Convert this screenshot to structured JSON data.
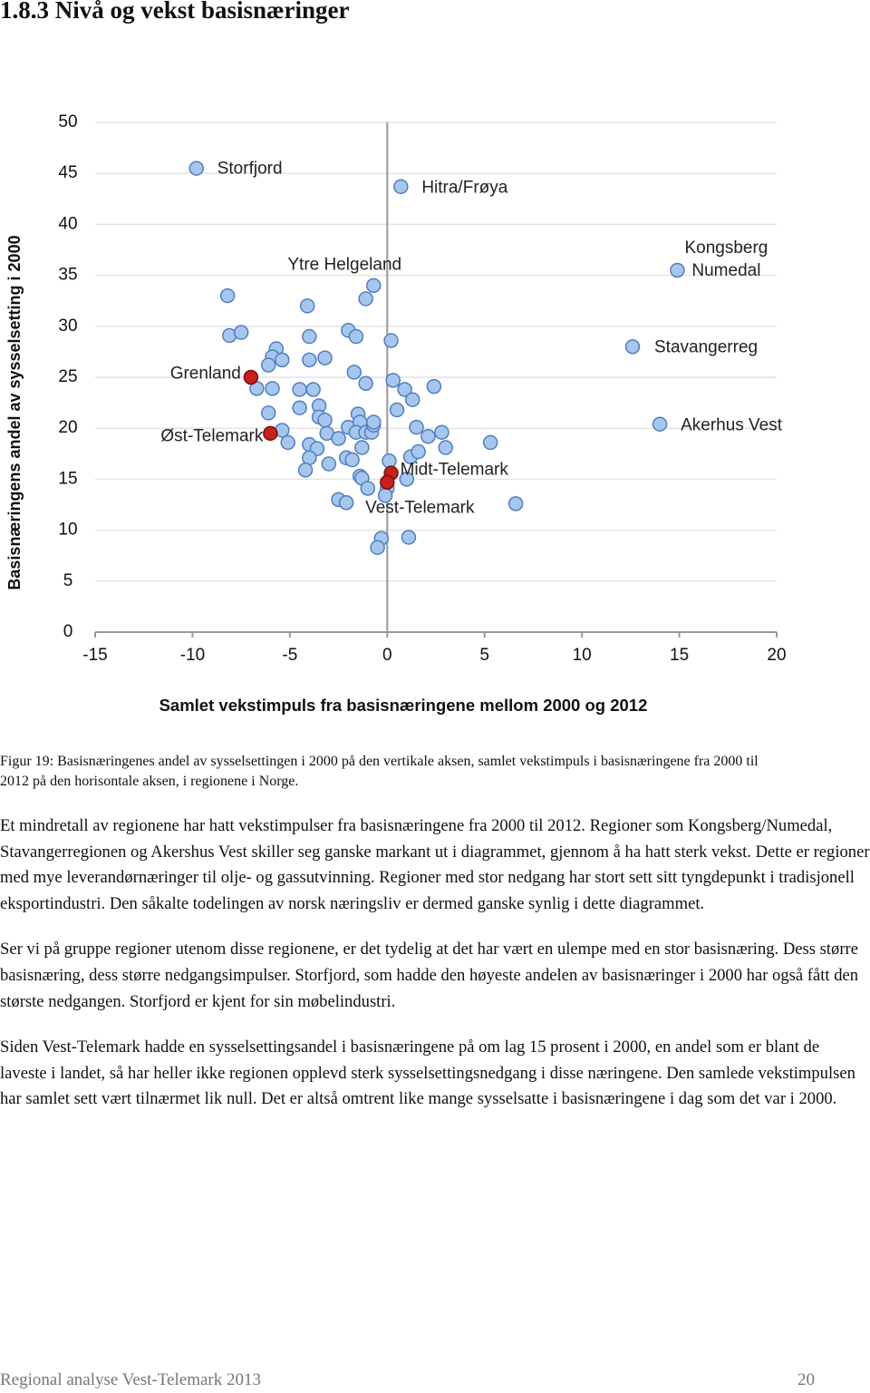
{
  "heading": "1.8.3 Nivå og vekst basisnæringer",
  "chart_data": {
    "type": "scatter",
    "xlabel": "Samlet vekstimpuls fra basisnæringene mellom 2000 og 2012",
    "ylabel": "Basisnæringens andel av sysselsetting i 2000",
    "xlim": [
      -15,
      20
    ],
    "xticks": [
      -15,
      -10,
      -5,
      0,
      5,
      10,
      15,
      20
    ],
    "ylim": [
      0,
      50
    ],
    "yticks": [
      0,
      5,
      10,
      15,
      20,
      25,
      30,
      35,
      40,
      45,
      50
    ],
    "grid": true,
    "series": [
      {
        "color": "#a7c6ee",
        "edgecolor": "#4f7fbf",
        "x": [
          -9.8,
          0.7,
          14.9,
          12.6,
          14.0,
          -0.7
        ],
        "values": [
          45.5,
          43.7,
          35.5,
          28.0,
          20.4,
          34.0
        ],
        "point_labels": [
          "Storfjord",
          "Hitra/Frøya",
          "Kongsberg\nNumedal",
          "Stavangerreg",
          "Akerhus Vest",
          "Ytre Helgeland"
        ]
      },
      {
        "color": "#a7c6ee",
        "edgecolor": "#4f7fbf",
        "x": [
          -8.2,
          -8.1,
          -7.5,
          -4.1,
          -1.1,
          -2.0,
          -1.6,
          0.2,
          -4.0,
          -5.7,
          -5.9,
          -6.1,
          -5.4,
          -4.0,
          -3.2,
          -6.7,
          -5.9,
          -4.5,
          -3.8,
          -1.7,
          -1.1,
          0.3,
          0.9,
          1.3,
          2.4,
          -6.1,
          -4.5,
          -3.5,
          -3.5,
          -3.2,
          -1.5,
          0.5,
          -5.4,
          -5.1,
          -3.1,
          -2.5,
          -2.0,
          -1.4,
          -1.6,
          -1.1,
          -0.8,
          -0.7,
          -0.7,
          1.5,
          2.1,
          2.8,
          3.0,
          5.3,
          -4.0,
          -3.6,
          -1.3,
          -4.0,
          -4.2,
          -3.0,
          -2.1,
          -1.8,
          0.1,
          1.2,
          1.6,
          -1.4,
          -1.3,
          1.0,
          -1.0,
          0.0,
          -0.1,
          -2.5,
          -2.1,
          6.6,
          -0.3,
          -0.5,
          1.1
        ],
        "values": [
          33.0,
          29.1,
          29.4,
          32.0,
          32.7,
          29.6,
          29.0,
          28.6,
          29.0,
          27.8,
          27.0,
          26.2,
          26.7,
          26.7,
          26.9,
          23.9,
          23.9,
          23.8,
          23.8,
          25.5,
          24.4,
          24.7,
          23.8,
          22.8,
          24.1,
          21.5,
          22.0,
          22.2,
          21.1,
          20.8,
          21.4,
          21.8,
          19.8,
          18.6,
          19.5,
          19.0,
          20.1,
          20.6,
          19.6,
          19.6,
          19.6,
          20.3,
          20.6,
          20.1,
          19.2,
          19.6,
          18.1,
          18.6,
          18.4,
          18.0,
          18.1,
          17.1,
          15.9,
          16.5,
          17.1,
          16.9,
          16.8,
          17.2,
          17.7,
          15.3,
          15.1,
          15.0,
          14.1,
          14.1,
          13.4,
          13.0,
          12.7,
          12.6,
          9.2,
          8.3,
          9.3
        ]
      },
      {
        "color": "#c8201b",
        "edgecolor": "#7a100d",
        "x": [
          -7.0,
          -6.0,
          0.2,
          0.0
        ],
        "values": [
          25.0,
          19.5,
          15.6,
          14.7
        ],
        "point_labels": [
          "Grenland",
          "Øst-Telemark",
          "Midt-Telemark",
          "Vest-Telemark"
        ]
      }
    ]
  },
  "caption": "Figur 19: Basisnæringenes andel av sysselsettingen i 2000 på den vertikale aksen, samlet vekstimpuls i basisnæringene fra 2000 til 2012 på den horisontale aksen, i regionene i Norge.",
  "paragraphs": [
    "Et mindretall av regionene har hatt vekstimpulser fra basisnæringene fra 2000 til 2012. Regioner som Kongsberg/Numedal, Stavangerregionen og Akershus Vest skiller seg ganske markant ut i diagrammet, gjennom å ha hatt sterk vekst. Dette er regioner med mye leverandørnæringer til olje- og gassutvinning. Regioner med stor nedgang har stort sett sitt tyngdepunkt i tradisjonell eksportindustri. Den såkalte todelingen av norsk næringsliv er dermed ganske synlig i dette diagrammet.",
    "Ser vi på gruppe regioner utenom disse regionene, er det tydelig at det har vært en ulempe med en stor basisnæring. Dess større basisnæring, dess større nedgangsimpulser. Storfjord, som hadde den høyeste andelen av basisnæringer i 2000 har også fått den største nedgangen. Storfjord er kjent for sin møbelindustri.",
    "Siden Vest-Telemark hadde en sysselsettingsandel i basisnæringene på om lag 15 prosent i 2000, en andel som er blant de laveste i landet, så har heller ikke regionen opplevd sterk sysselsettingsnedgang i disse næringene. Den samlede vekstimpulsen har samlet sett vært tilnærmet lik null. Det er altså omtrent like mange sysselsatte i basisnæringene i dag som det var i 2000."
  ],
  "footer": {
    "title": "Regional analyse Vest-Telemark 2013",
    "page": "20"
  }
}
